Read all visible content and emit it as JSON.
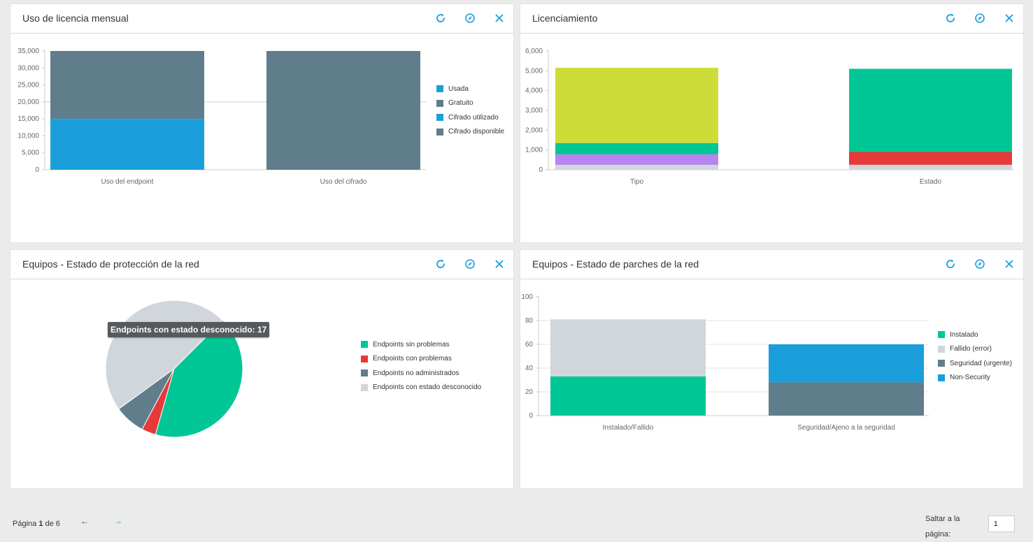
{
  "panels": [
    {
      "title": "Uso de licencia mensual",
      "chart_data": {
        "type": "bar",
        "stacked": true,
        "categories": [
          "Uso del endpoint",
          "Uso del cifrado"
        ],
        "series": [
          {
            "name": "Usada",
            "color": "#1a9fdb",
            "values": [
              15000,
              0
            ]
          },
          {
            "name": "Gratuito",
            "color": "#607d8b",
            "values": [
              20000,
              0
            ]
          },
          {
            "name": "Cifrado utilizado",
            "color": "#1a9fdb",
            "values": [
              0,
              0
            ]
          },
          {
            "name": "Cifrado disponible",
            "color": "#607d8b",
            "values": [
              0,
              35000
            ]
          }
        ],
        "yticks": [
          "35,000",
          "30,000",
          "25,000",
          "20,000",
          "15,000",
          "10,000",
          "5,000",
          "0"
        ],
        "ylim": [
          0,
          35000
        ],
        "legend": "right"
      }
    },
    {
      "title": "Licenciamiento",
      "chart_data": {
        "type": "bar",
        "stacked": true,
        "categories": [
          "Tipo",
          "Estado"
        ],
        "series": [
          {
            "color": "#d0d6db",
            "values": [
              250,
              250
            ]
          },
          {
            "color": "#b784f2",
            "values": [
              530,
              0
            ]
          },
          {
            "color": "#e63a3a",
            "values": [
              0,
              650
            ]
          },
          {
            "color": "#00c795",
            "values": [
              570,
              4200
            ]
          },
          {
            "color": "#cddc39",
            "values": [
              3800,
              0
            ]
          }
        ],
        "yticks": [
          "6,000",
          "5,000",
          "4,000",
          "3,000",
          "2,000",
          "1,000",
          "0"
        ],
        "ylim": [
          0,
          6000
        ],
        "legend": "none"
      }
    },
    {
      "title": "Equipos - Estado de protección de la red",
      "chart_data": {
        "type": "pie",
        "slices": [
          {
            "name": "Endpoints sin problemas",
            "color": "#00c795",
            "value": 15
          },
          {
            "name": "Endpoints con problemas",
            "color": "#e63a3a",
            "value": 1.2
          },
          {
            "name": "Endpoints no administrados",
            "color": "#607d8b",
            "value": 2.6
          },
          {
            "name": "Endpoints con estado desconocido",
            "color": "#d0d6db",
            "value": 17
          }
        ],
        "tooltip": "Endpoints con estado desconocido: 17",
        "legend": "right"
      }
    },
    {
      "title": "Equipos - Estado de parches de la red",
      "chart_data": {
        "type": "bar",
        "stacked": true,
        "categories": [
          "Instalado/Fallido",
          "Seguridad/Ajeno a la seguridad"
        ],
        "series": [
          {
            "name": "Instalado",
            "color": "#00c795",
            "values": [
              33,
              0
            ]
          },
          {
            "name": "Fallido (error)",
            "color": "#d0d6db",
            "values": [
              48,
              0
            ]
          },
          {
            "name": "Seguridad (urgente)",
            "color": "#607d8b",
            "values": [
              0,
              28
            ]
          },
          {
            "name": "Non-Security",
            "color": "#1a9fdb",
            "values": [
              0,
              32
            ]
          }
        ],
        "yticks": [
          "100",
          "80",
          "60",
          "40",
          "20",
          "0"
        ],
        "ylim": [
          0,
          100
        ],
        "legend": "right"
      }
    }
  ],
  "actions": {
    "refresh": "refresh-icon",
    "settings": "compass-icon",
    "close": "close-icon"
  },
  "footer": {
    "page_prefix": "Página ",
    "page_current": "1",
    "page_of": " de ",
    "page_total": "6",
    "prev_arrow": "←",
    "next_arrow": "→",
    "jump_label_1": "Saltar a la",
    "jump_label_2": "página:",
    "jump_value": "1"
  },
  "colors": {
    "accent": "#1a9fdb"
  }
}
